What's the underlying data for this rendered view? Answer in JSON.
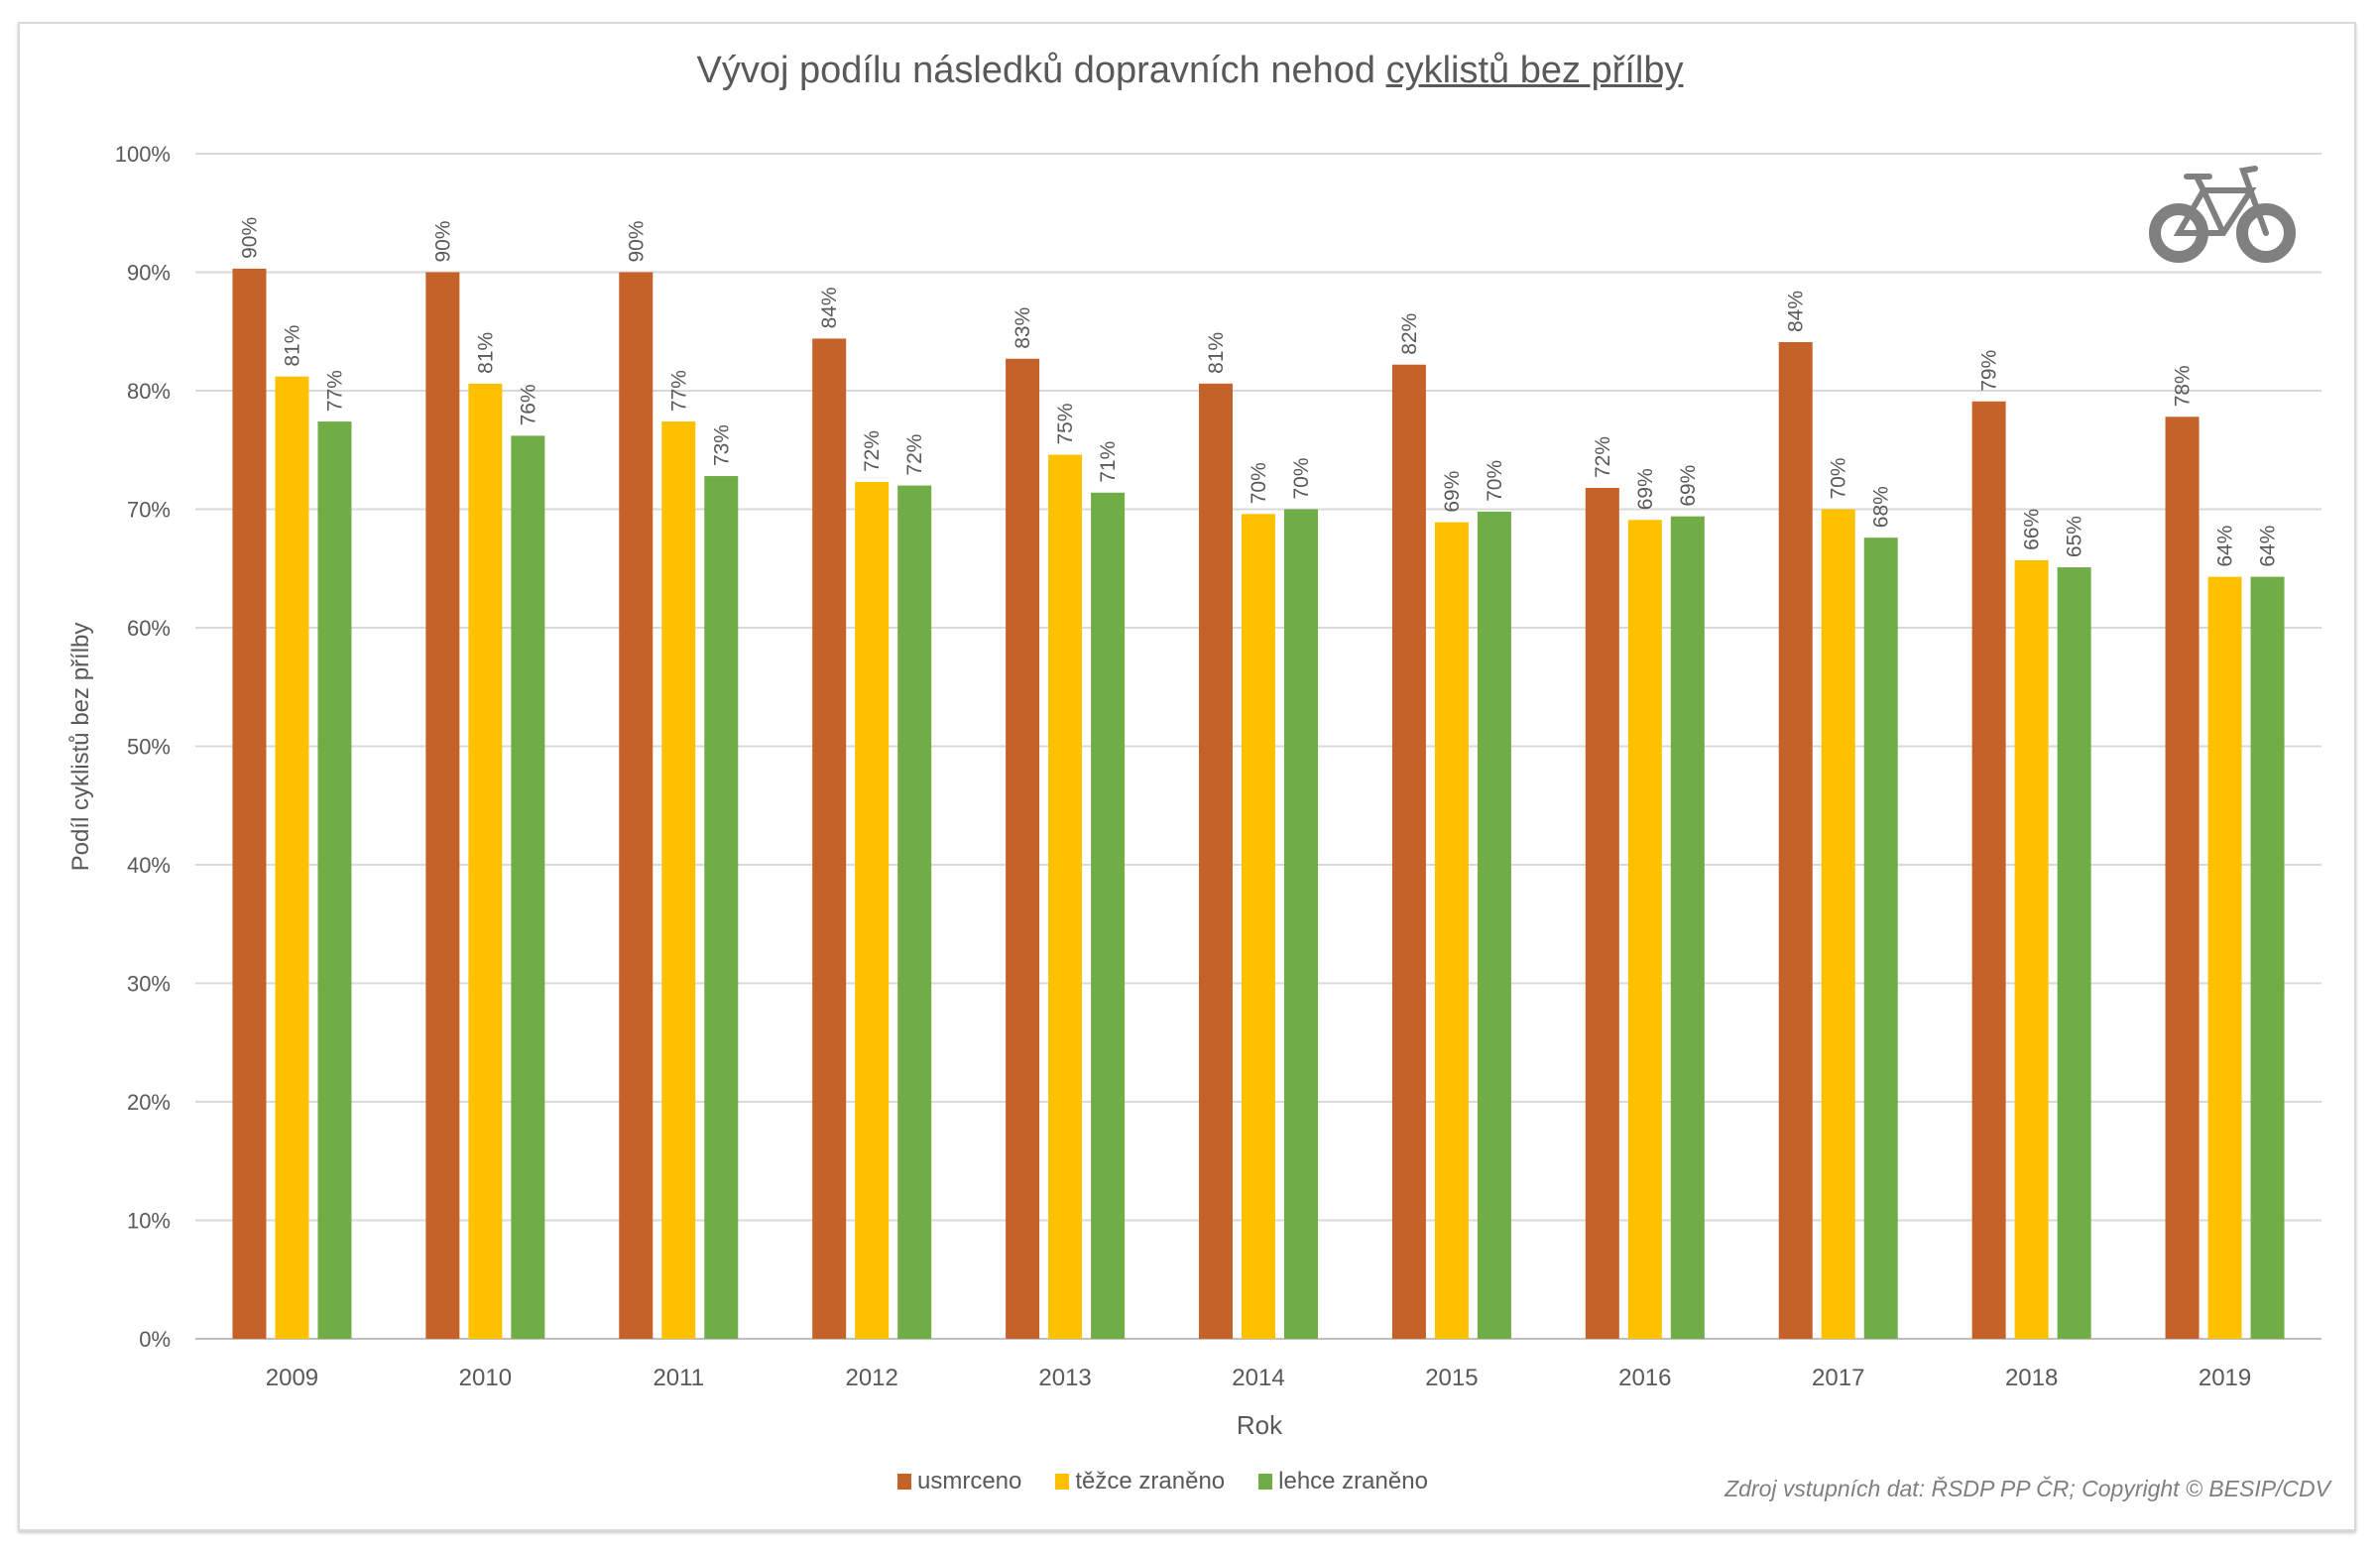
{
  "title_plain": "Vývoj podílu následků dopravních nehod ",
  "title_underlined": "cyklistů bez přílby",
  "source": "Zdroj vstupních dat: ŘSDP PP ČR; Copyright © BESIP/CDV",
  "icon": "bicycle-icon",
  "chart_data": {
    "type": "bar",
    "title": "Vývoj podílu následků dopravních nehod cyklistů bez přílby",
    "xlabel": "Rok",
    "ylabel": "Podíl cyklistů bez přílby",
    "ylim": [
      0,
      100
    ],
    "yticks": [
      "0%",
      "10%",
      "20%",
      "30%",
      "40%",
      "50%",
      "60%",
      "70%",
      "80%",
      "90%",
      "100%"
    ],
    "grid": true,
    "legend": "bottom",
    "categories": [
      "2009",
      "2010",
      "2011",
      "2012",
      "2013",
      "2014",
      "2015",
      "2016",
      "2017",
      "2018",
      "2019"
    ],
    "series": [
      {
        "name": "usmrceno",
        "color": "#C5622A",
        "values": [
          90.3,
          90.0,
          90.0,
          84.4,
          82.7,
          80.6,
          82.2,
          71.8,
          84.1,
          79.1,
          77.8
        ],
        "labels": [
          "90%",
          "90%",
          "90%",
          "84%",
          "83%",
          "81%",
          "82%",
          "72%",
          "84%",
          "79%",
          "78%"
        ]
      },
      {
        "name": "těžce zraněno",
        "color": "#FFC000",
        "values": [
          81.2,
          80.6,
          77.4,
          72.3,
          74.6,
          69.6,
          68.9,
          69.1,
          70.0,
          65.7,
          64.3
        ],
        "labels": [
          "81%",
          "81%",
          "77%",
          "72%",
          "75%",
          "70%",
          "69%",
          "69%",
          "70%",
          "66%",
          "64%"
        ]
      },
      {
        "name": "lehce zraněno",
        "color": "#70AD47",
        "values": [
          77.4,
          76.2,
          72.8,
          72.0,
          71.4,
          70.0,
          69.8,
          69.4,
          67.6,
          65.1,
          64.3
        ],
        "labels": [
          "77%",
          "76%",
          "73%",
          "72%",
          "71%",
          "70%",
          "70%",
          "69%",
          "68%",
          "65%",
          "64%"
        ]
      }
    ]
  }
}
